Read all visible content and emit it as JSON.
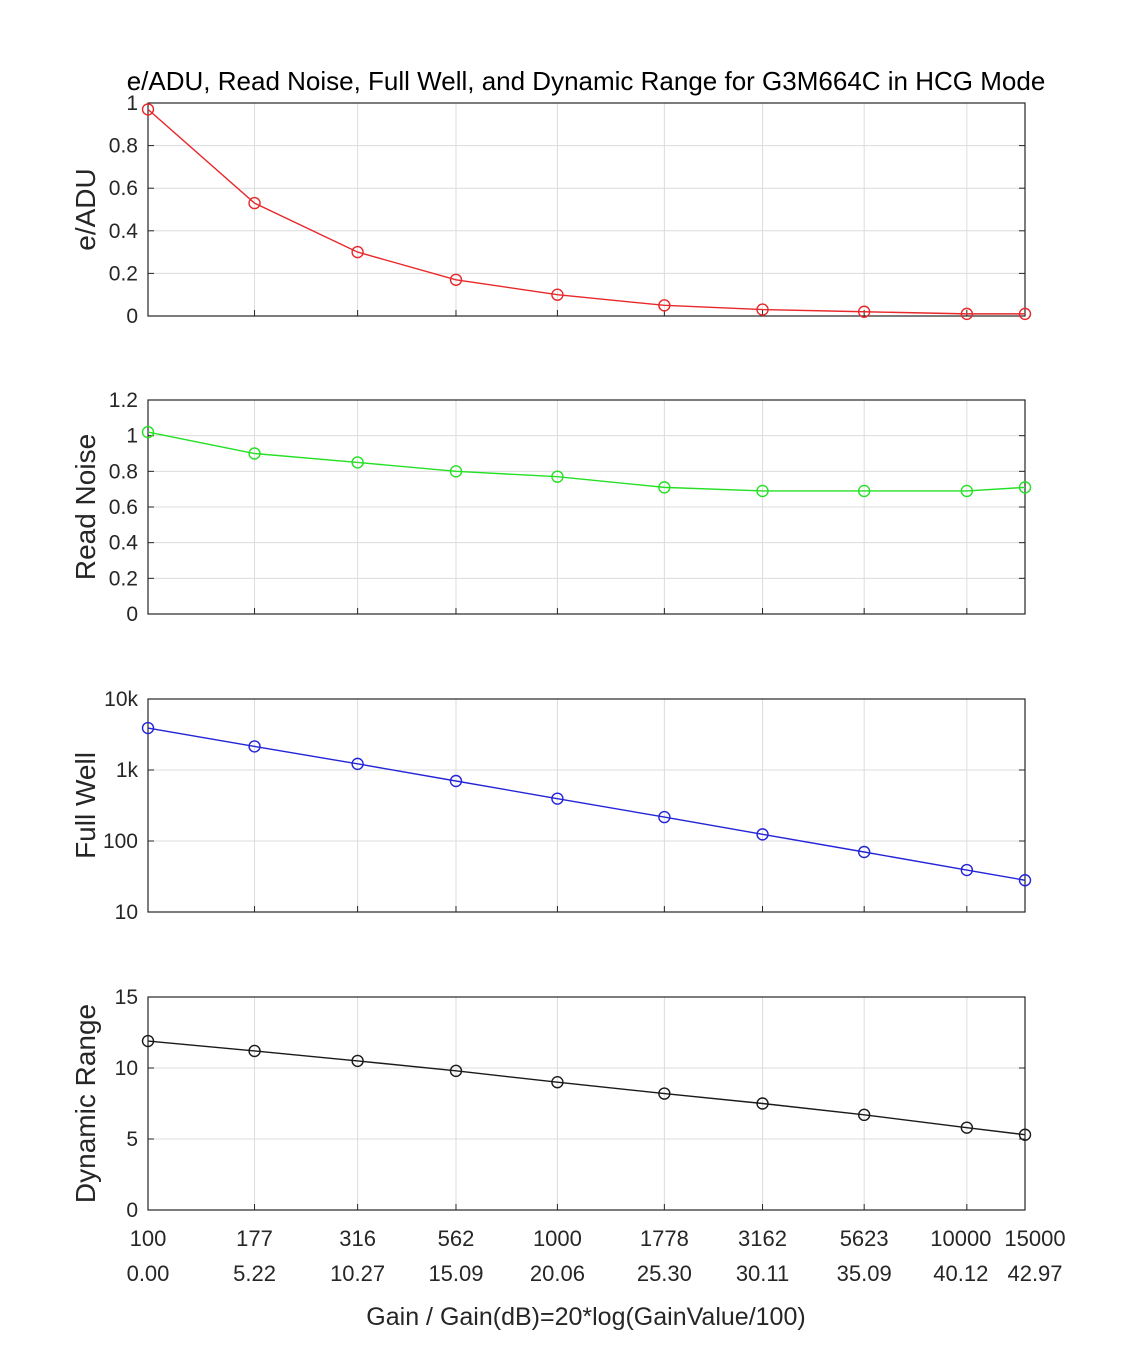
{
  "chart_data": {
    "type": "line",
    "title": "e/ADU, Read Noise, Full Well, and Dynamic Range for G3M664C in HCG Mode",
    "xlabel": "Gain / Gain(dB)=20*log(GainValue/100)",
    "x_gain": [
      "100",
      "177",
      "316",
      "562",
      "1000",
      "1778",
      "3162",
      "5623",
      "10000",
      "15000"
    ],
    "x_db": [
      "0.00",
      "5.22",
      "10.27",
      "15.09",
      "20.06",
      "25.30",
      "30.11",
      "35.09",
      "40.12",
      "42.97"
    ],
    "x_db_values": [
      0.0,
      5.22,
      10.27,
      15.09,
      20.06,
      25.3,
      30.11,
      35.09,
      40.12,
      42.97
    ],
    "xlim": [
      0,
      42.97
    ],
    "grid": true,
    "subplots": [
      {
        "ylabel": "e/ADU",
        "color": "#e8282a",
        "scale": "linear",
        "ylim": [
          0,
          1
        ],
        "yticks": [
          0,
          0.2,
          0.4,
          0.6,
          0.8,
          1
        ],
        "yticklabels": [
          "0",
          "0.2",
          "0.4",
          "0.6",
          "0.8",
          "1"
        ],
        "values": [
          0.97,
          0.53,
          0.3,
          0.17,
          0.1,
          0.05,
          0.03,
          0.02,
          0.01,
          0.01
        ]
      },
      {
        "ylabel": "Read Noise",
        "color": "#25e025",
        "scale": "linear",
        "ylim": [
          0,
          1.2
        ],
        "yticks": [
          0,
          0.2,
          0.4,
          0.6,
          0.8,
          1,
          1.2
        ],
        "yticklabels": [
          "0",
          "0.2",
          "0.4",
          "0.6",
          "0.8",
          "1",
          "1.2"
        ],
        "values": [
          1.02,
          0.9,
          0.85,
          0.8,
          0.77,
          0.71,
          0.69,
          0.69,
          0.69,
          0.71
        ]
      },
      {
        "ylabel": "Full Well",
        "color": "#2424d8",
        "scale": "log",
        "ylim": [
          10,
          10000
        ],
        "yticks": [
          10,
          100,
          1000,
          10000
        ],
        "yticklabels": [
          "10",
          "100",
          "1k",
          "10k"
        ],
        "values": [
          3900,
          2150,
          1220,
          700,
          395,
          217,
          124,
          70,
          39,
          28
        ]
      },
      {
        "ylabel": "Dynamic Range",
        "color": "#1a1a1a",
        "scale": "linear",
        "ylim": [
          0,
          15
        ],
        "yticks": [
          0,
          5,
          10,
          15
        ],
        "yticklabels": [
          "0",
          "5",
          "10",
          "15"
        ],
        "values": [
          11.9,
          11.2,
          10.5,
          9.8,
          9.0,
          8.2,
          7.5,
          6.7,
          5.8,
          5.3
        ]
      }
    ]
  }
}
